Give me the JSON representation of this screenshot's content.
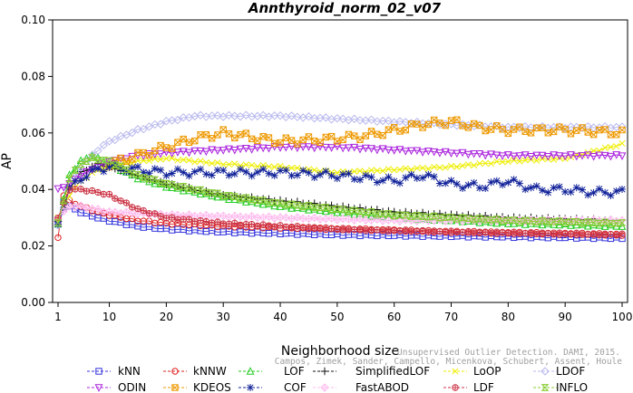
{
  "chart_data": {
    "type": "line",
    "title": "Annthyroid_norm_02_v07",
    "xlabel": "Neighborhood size",
    "ylabel": "AP",
    "xlim": [
      1,
      100
    ],
    "ylim": [
      0.0,
      0.1
    ],
    "x_ticks": [
      1,
      10,
      20,
      30,
      40,
      50,
      60,
      70,
      80,
      90,
      100
    ],
    "y_ticks": [
      0.0,
      0.02,
      0.04,
      0.06,
      0.08,
      0.1
    ],
    "x_tick_labels": [
      "1",
      "10",
      "20",
      "30",
      "40",
      "50",
      "60",
      "70",
      "80",
      "90",
      "100"
    ],
    "y_tick_labels": [
      "0.00",
      "0.02",
      "0.04",
      "0.06",
      "0.08",
      "0.10"
    ],
    "grid": false,
    "legend_position": "bottom",
    "watermark": {
      "line1": "Unsupervised Outlier Detection. DAMI, 2015.",
      "line2": "Campos, Zimek, Sander, Campello, Micenkova, Schubert, Assent, Houle"
    },
    "series": [
      {
        "name": "kNN",
        "color": "#3333dd",
        "marker": "square",
        "anchors": [
          [
            1,
            0.029
          ],
          [
            2,
            0.036
          ],
          [
            3,
            0.034
          ],
          [
            5,
            0.032
          ],
          [
            8,
            0.03
          ],
          [
            10,
            0.029
          ],
          [
            15,
            0.027
          ],
          [
            20,
            0.026
          ],
          [
            30,
            0.025
          ],
          [
            50,
            0.024
          ],
          [
            70,
            0.0235
          ],
          [
            100,
            0.0228
          ]
        ]
      },
      {
        "name": "kNNW",
        "color": "#dd2222",
        "marker": "circle",
        "anchors": [
          [
            1,
            0.023
          ],
          [
            2,
            0.038
          ],
          [
            3,
            0.036
          ],
          [
            5,
            0.034
          ],
          [
            8,
            0.032
          ],
          [
            10,
            0.031
          ],
          [
            15,
            0.029
          ],
          [
            20,
            0.028
          ],
          [
            30,
            0.027
          ],
          [
            50,
            0.026
          ],
          [
            70,
            0.025
          ],
          [
            100,
            0.024
          ]
        ]
      },
      {
        "name": "LOF",
        "color": "#22cc22",
        "marker": "triangle-up",
        "anchors": [
          [
            1,
            0.028
          ],
          [
            3,
            0.045
          ],
          [
            5,
            0.05
          ],
          [
            7,
            0.052
          ],
          [
            10,
            0.049
          ],
          [
            15,
            0.044
          ],
          [
            20,
            0.041
          ],
          [
            30,
            0.037
          ],
          [
            40,
            0.034
          ],
          [
            50,
            0.032
          ],
          [
            60,
            0.03
          ],
          [
            70,
            0.029
          ],
          [
            80,
            0.028
          ],
          [
            100,
            0.027
          ]
        ]
      },
      {
        "name": "SimplifiedLOF",
        "color": "#111111",
        "marker": "plus",
        "anchors": [
          [
            1,
            0.029
          ],
          [
            3,
            0.04
          ],
          [
            5,
            0.046
          ],
          [
            8,
            0.049
          ],
          [
            10,
            0.048
          ],
          [
            15,
            0.045
          ],
          [
            20,
            0.042
          ],
          [
            30,
            0.038
          ],
          [
            40,
            0.036
          ],
          [
            50,
            0.034
          ],
          [
            60,
            0.032
          ],
          [
            70,
            0.031
          ],
          [
            80,
            0.03
          ],
          [
            100,
            0.029
          ]
        ]
      },
      {
        "name": "LoOP",
        "color": "#eeee00",
        "marker": "x",
        "anchors": [
          [
            1,
            0.03
          ],
          [
            3,
            0.038
          ],
          [
            5,
            0.043
          ],
          [
            8,
            0.047
          ],
          [
            10,
            0.048
          ],
          [
            15,
            0.05
          ],
          [
            20,
            0.051
          ],
          [
            30,
            0.049
          ],
          [
            40,
            0.048
          ],
          [
            50,
            0.046
          ],
          [
            60,
            0.047
          ],
          [
            70,
            0.048
          ],
          [
            80,
            0.05
          ],
          [
            90,
            0.051
          ],
          [
            100,
            0.056
          ]
        ]
      },
      {
        "name": "LDOF",
        "color": "#b8b8ee",
        "marker": "diamond",
        "anchors": [
          [
            1,
            0.027
          ],
          [
            3,
            0.04
          ],
          [
            5,
            0.048
          ],
          [
            8,
            0.054
          ],
          [
            10,
            0.057
          ],
          [
            15,
            0.061
          ],
          [
            20,
            0.064
          ],
          [
            25,
            0.066
          ],
          [
            30,
            0.066
          ],
          [
            40,
            0.066
          ],
          [
            50,
            0.065
          ],
          [
            60,
            0.064
          ],
          [
            70,
            0.063
          ],
          [
            80,
            0.062
          ],
          [
            90,
            0.062
          ],
          [
            100,
            0.062
          ]
        ]
      },
      {
        "name": "ODIN",
        "color": "#aa22dd",
        "marker": "triangle-down",
        "anchors": [
          [
            1,
            0.04
          ],
          [
            3,
            0.042
          ],
          [
            5,
            0.045
          ],
          [
            8,
            0.048
          ],
          [
            10,
            0.05
          ],
          [
            15,
            0.052
          ],
          [
            20,
            0.053
          ],
          [
            30,
            0.054
          ],
          [
            40,
            0.055
          ],
          [
            50,
            0.055
          ],
          [
            60,
            0.054
          ],
          [
            70,
            0.053
          ],
          [
            80,
            0.052
          ],
          [
            90,
            0.052
          ],
          [
            100,
            0.052
          ]
        ]
      },
      {
        "name": "KDEOS",
        "color": "#ee9900",
        "marker": "boxx",
        "anchors": [
          [
            10,
            0.049
          ],
          [
            15,
            0.052
          ],
          [
            20,
            0.055
          ],
          [
            25,
            0.058
          ],
          [
            30,
            0.06
          ],
          [
            40,
            0.057
          ],
          [
            50,
            0.058
          ],
          [
            55,
            0.059
          ],
          [
            60,
            0.061
          ],
          [
            65,
            0.063
          ],
          [
            70,
            0.064
          ],
          [
            75,
            0.062
          ],
          [
            80,
            0.061
          ],
          [
            90,
            0.061
          ],
          [
            100,
            0.06
          ]
        ]
      },
      {
        "name": "COF",
        "color": "#112299",
        "marker": "asterisk",
        "anchors": [
          [
            1,
            0.028
          ],
          [
            3,
            0.04
          ],
          [
            5,
            0.044
          ],
          [
            8,
            0.047
          ],
          [
            10,
            0.048
          ],
          [
            15,
            0.047
          ],
          [
            20,
            0.046
          ],
          [
            30,
            0.046
          ],
          [
            40,
            0.046
          ],
          [
            50,
            0.045
          ],
          [
            55,
            0.044
          ],
          [
            60,
            0.043
          ],
          [
            65,
            0.045
          ],
          [
            70,
            0.042
          ],
          [
            75,
            0.041
          ],
          [
            80,
            0.043
          ],
          [
            85,
            0.04
          ],
          [
            90,
            0.04
          ],
          [
            95,
            0.039
          ],
          [
            100,
            0.039
          ]
        ]
      },
      {
        "name": "FastABOD",
        "color": "#ffbbee",
        "marker": "diamond-x",
        "anchors": [
          [
            1,
            0.03
          ],
          [
            3,
            0.034
          ],
          [
            5,
            0.034
          ],
          [
            10,
            0.032
          ],
          [
            20,
            0.031
          ],
          [
            40,
            0.03
          ],
          [
            60,
            0.029
          ],
          [
            80,
            0.029
          ],
          [
            100,
            0.029
          ]
        ]
      },
      {
        "name": "LDF",
        "color": "#cc3344",
        "marker": "circle-plus",
        "anchors": [
          [
            1,
            0.03
          ],
          [
            3,
            0.04
          ],
          [
            5,
            0.04
          ],
          [
            8,
            0.039
          ],
          [
            10,
            0.038
          ],
          [
            15,
            0.033
          ],
          [
            20,
            0.03
          ],
          [
            30,
            0.028
          ],
          [
            50,
            0.026
          ],
          [
            70,
            0.025
          ],
          [
            100,
            0.024
          ]
        ]
      },
      {
        "name": "INFLO",
        "color": "#88cc33",
        "marker": "hourglass",
        "anchors": [
          [
            1,
            0.028
          ],
          [
            3,
            0.044
          ],
          [
            5,
            0.049
          ],
          [
            7,
            0.051
          ],
          [
            10,
            0.05
          ],
          [
            15,
            0.045
          ],
          [
            20,
            0.042
          ],
          [
            30,
            0.038
          ],
          [
            40,
            0.035
          ],
          [
            50,
            0.033
          ],
          [
            60,
            0.031
          ],
          [
            70,
            0.03
          ],
          [
            80,
            0.029
          ],
          [
            100,
            0.028
          ]
        ]
      }
    ]
  }
}
